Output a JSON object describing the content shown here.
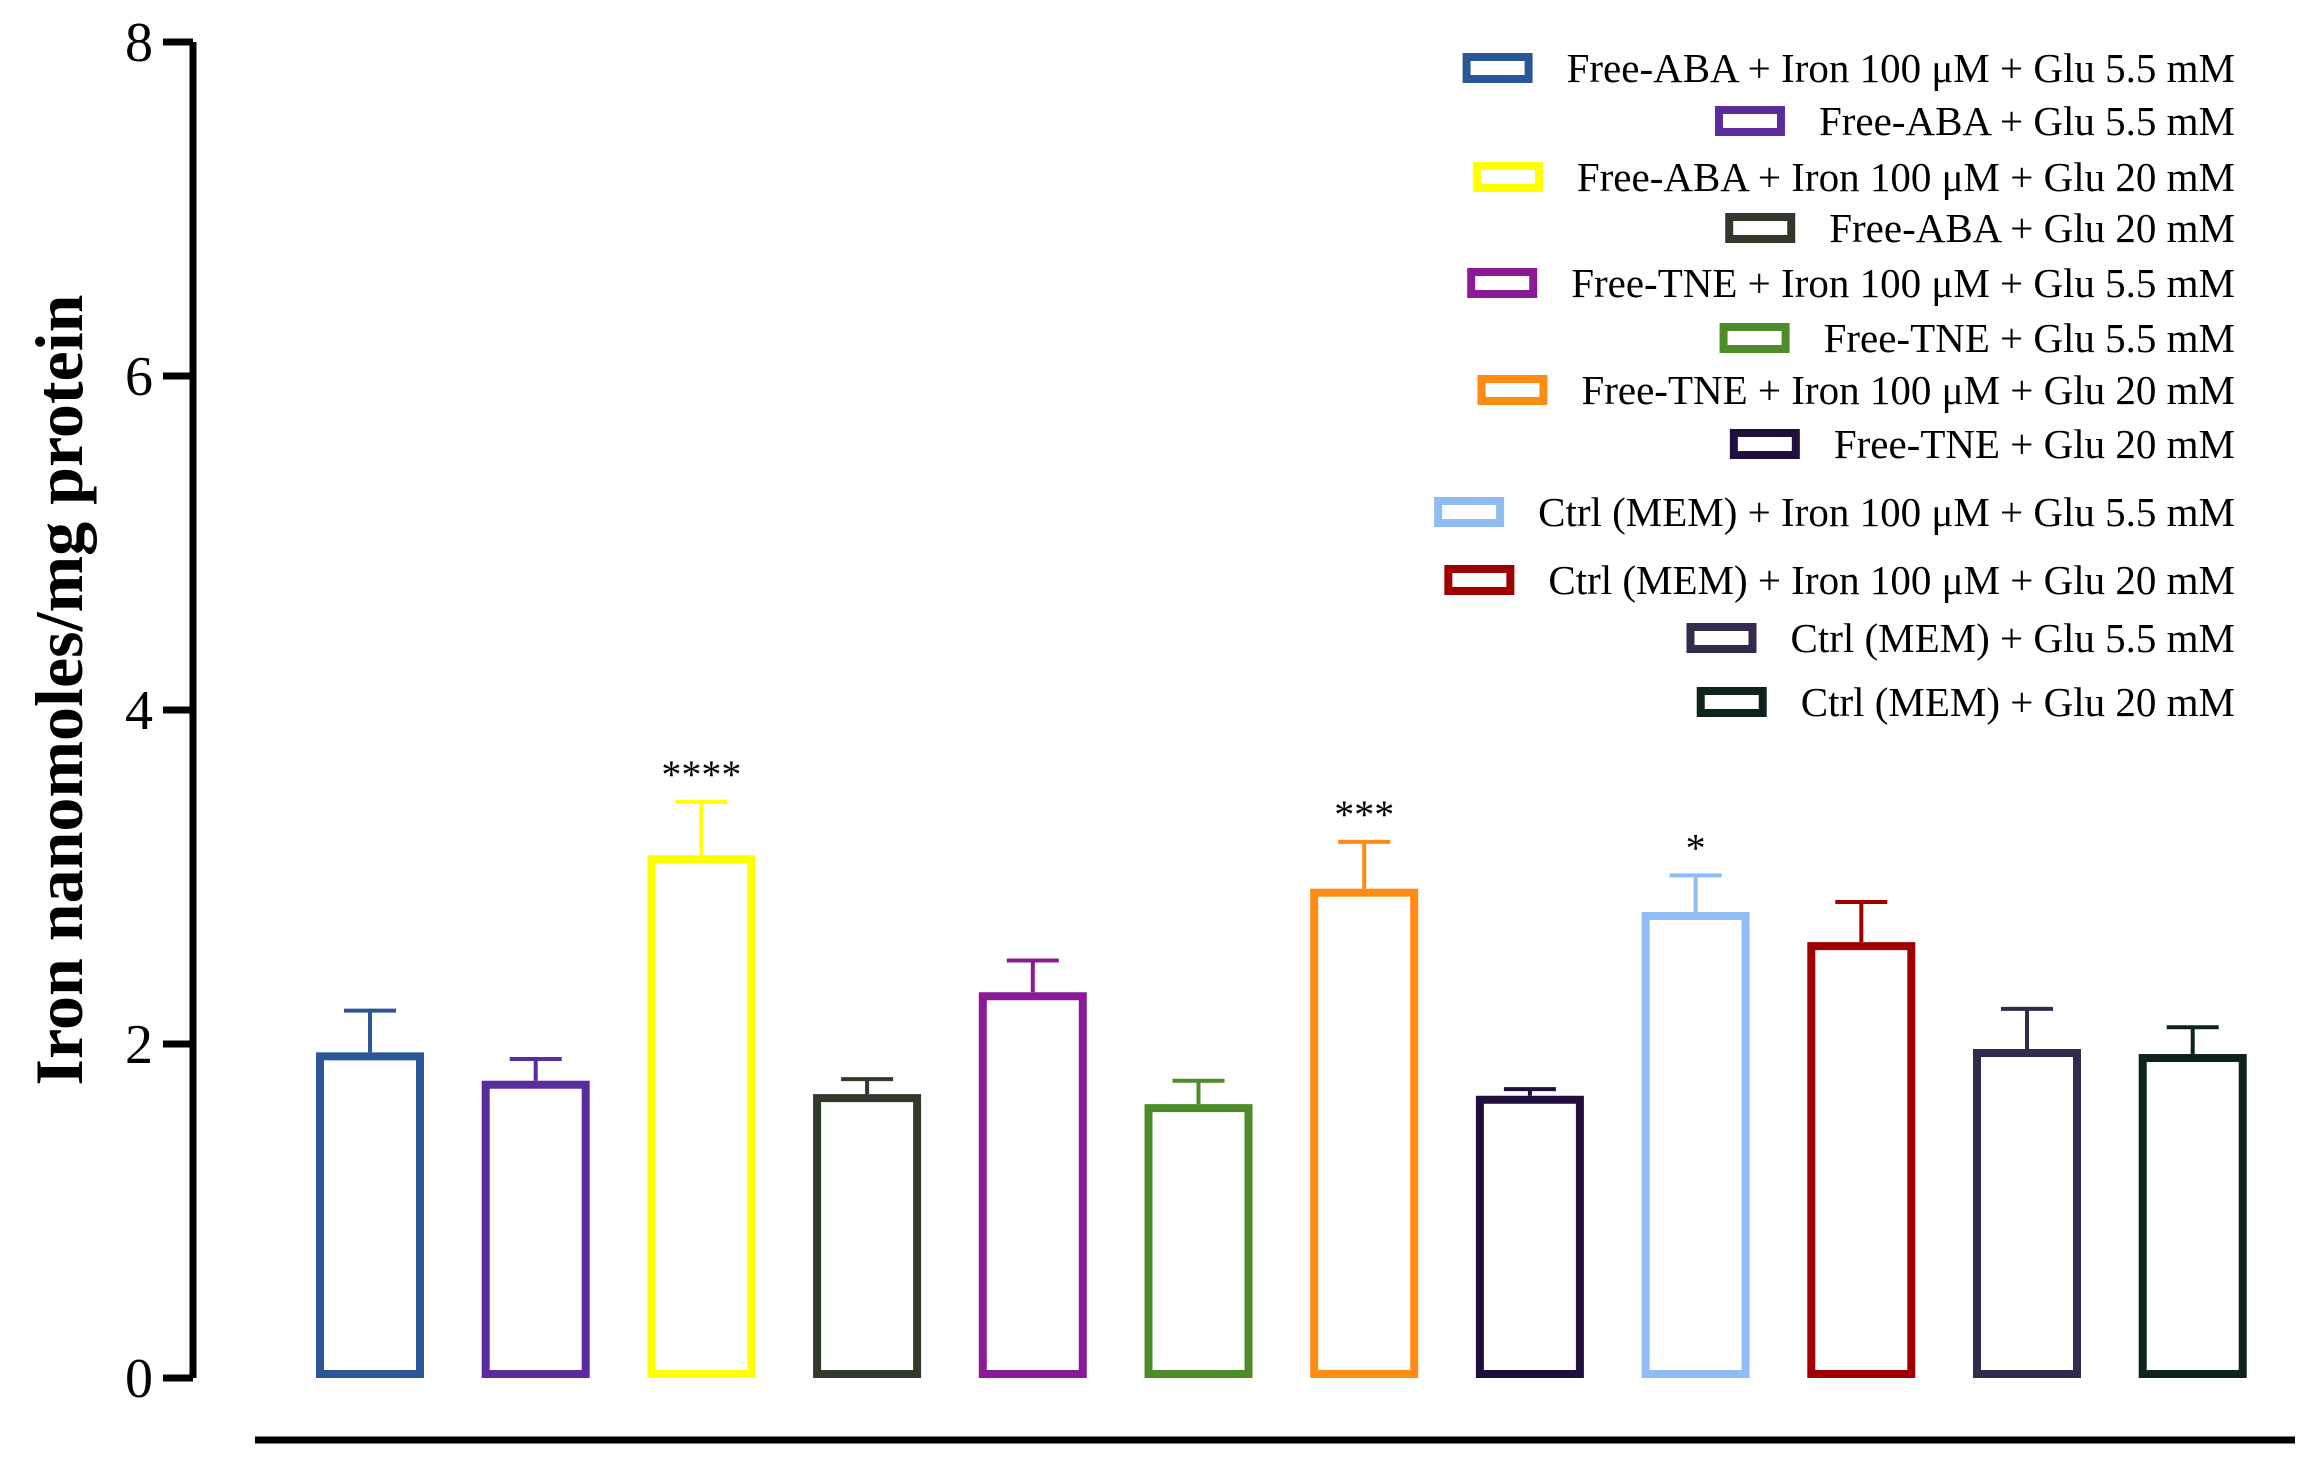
{
  "chart_data": {
    "type": "bar",
    "title": "",
    "xlabel": "",
    "ylabel": "Iron nanomoles/mg protein",
    "ylim": [
      0,
      8
    ],
    "yticks": [
      0,
      2,
      4,
      6,
      8
    ],
    "grid": false,
    "legend_position": "top-right",
    "series": [
      {
        "name": "Free-ABA + Iron 100 μM + Glu 5.5 mM",
        "value": 1.95,
        "error": 0.25,
        "color": "#2b5797",
        "sig": ""
      },
      {
        "name": "Free-ABA + Glu 5.5 mM",
        "value": 1.78,
        "error": 0.13,
        "color": "#5b2c9e",
        "sig": ""
      },
      {
        "name": "Free-ABA + Iron 100 μM + Glu 20 mM",
        "value": 3.13,
        "error": 0.32,
        "color": "#ffff00",
        "sig": "****"
      },
      {
        "name": "Free-ABA + Glu 20 mM",
        "value": 1.7,
        "error": 0.09,
        "color": "#2f3a2a",
        "sig": ""
      },
      {
        "name": "Free-TNE + Iron 100 μM + Glu 5.5 mM",
        "value": 2.31,
        "error": 0.19,
        "color": "#8b1a97",
        "sig": ""
      },
      {
        "name": "Free-TNE + Glu 5.5 mM",
        "value": 1.64,
        "error": 0.14,
        "color": "#4e8c2a",
        "sig": ""
      },
      {
        "name": "Free-TNE + Iron 100 μM + Glu 20 mM",
        "value": 2.93,
        "error": 0.28,
        "color": "#ff8a14",
        "sig": "***"
      },
      {
        "name": "Free-TNE + Glu 20 mM",
        "value": 1.69,
        "error": 0.04,
        "color": "#1e0f3c",
        "sig": ""
      },
      {
        "name": "Ctrl (MEM) + Iron 100 μM + Glu 5.5 mM",
        "value": 2.79,
        "error": 0.22,
        "color": "#8fbcf2",
        "sig": "*"
      },
      {
        "name": "Ctrl (MEM) + Iron 100 μM + Glu 20 mM",
        "value": 2.61,
        "error": 0.24,
        "color": "#a00000",
        "sig": ""
      },
      {
        "name": "Ctrl (MEM) + Glu 5.5 mM",
        "value": 1.97,
        "error": 0.24,
        "color": "#342a4e",
        "sig": ""
      },
      {
        "name": "Ctrl (MEM) + Glu 20 mM",
        "value": 1.94,
        "error": 0.16,
        "color": "#0f2418",
        "sig": ""
      }
    ]
  }
}
